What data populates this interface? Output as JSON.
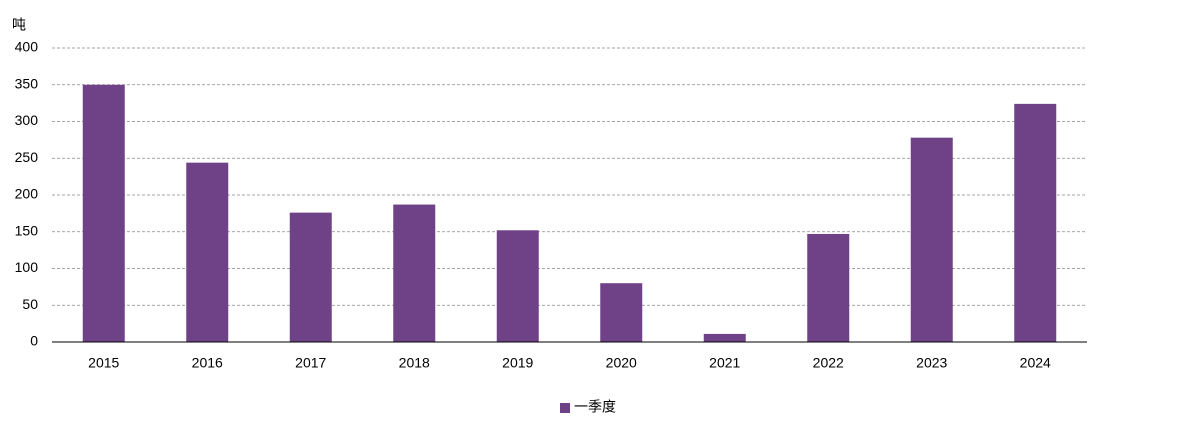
{
  "chart_data": {
    "type": "bar",
    "y_label": "吨",
    "categories": [
      "2015",
      "2016",
      "2017",
      "2018",
      "2019",
      "2020",
      "2021",
      "2022",
      "2023",
      "2024"
    ],
    "series": [
      {
        "name": "一季度",
        "color": "#6f4287",
        "values": [
          350,
          244,
          176,
          187,
          152,
          80,
          11,
          147,
          278,
          324
        ]
      }
    ],
    "ylim": [
      0,
      400
    ],
    "yticks": [
      0,
      50,
      100,
      150,
      200,
      250,
      300,
      350,
      400
    ],
    "grid": true,
    "legend": "bottom"
  }
}
